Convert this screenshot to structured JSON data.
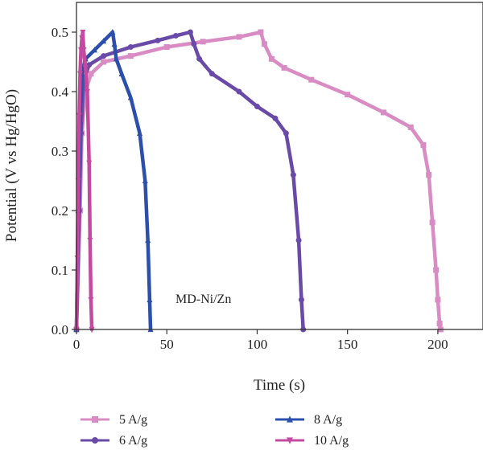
{
  "chart_data": {
    "type": "line",
    "xlabel": "Time (s)",
    "ylabel": "Potential (V vs Hg/HgO)",
    "annotation": "MD-Ni/Zn",
    "xlim": [
      0,
      225
    ],
    "ylim": [
      0,
      0.55
    ],
    "xticks": [
      0,
      50,
      100,
      150,
      200
    ],
    "yticks": [
      0.0,
      0.1,
      0.2,
      0.3,
      0.4,
      0.5
    ],
    "xtick_labels": [
      "0",
      "50",
      "100",
      "150",
      "200"
    ],
    "ytick_labels": [
      "0.0",
      "0.1",
      "0.2",
      "0.3",
      "0.4",
      "0.5"
    ],
    "grid": false,
    "legend_position": "bottom",
    "series": [
      {
        "name": "5 A/g",
        "color": "#d98cc4",
        "marker": "square",
        "x": [
          0,
          2,
          3,
          5,
          8,
          15,
          30,
          50,
          70,
          90,
          102,
          104,
          108,
          115,
          130,
          150,
          170,
          185,
          192,
          195,
          197,
          199,
          200,
          201,
          201.5
        ],
        "y": [
          0.0,
          0.2,
          0.33,
          0.4,
          0.43,
          0.45,
          0.46,
          0.475,
          0.484,
          0.492,
          0.5,
          0.48,
          0.455,
          0.44,
          0.42,
          0.395,
          0.365,
          0.34,
          0.31,
          0.26,
          0.18,
          0.1,
          0.05,
          0.01,
          0.0
        ]
      },
      {
        "name": "6 A/g",
        "color": "#6a4aa8",
        "marker": "circle",
        "x": [
          0,
          1.5,
          2.5,
          4,
          7,
          15,
          30,
          45,
          55,
          63,
          65,
          68,
          75,
          90,
          100,
          110,
          116,
          120,
          123,
          124.5,
          125.5
        ],
        "y": [
          0.0,
          0.2,
          0.33,
          0.42,
          0.445,
          0.46,
          0.475,
          0.486,
          0.494,
          0.5,
          0.48,
          0.455,
          0.43,
          0.4,
          0.375,
          0.355,
          0.33,
          0.26,
          0.15,
          0.05,
          0.0
        ]
      },
      {
        "name": "8 A/g",
        "color": "#2b4faa",
        "marker": "triangle-up",
        "x": [
          0,
          1,
          2,
          3,
          5,
          10,
          15,
          20,
          21,
          22,
          25,
          30,
          35,
          38,
          39.5,
          40.5,
          41
        ],
        "y": [
          0.0,
          0.2,
          0.35,
          0.43,
          0.455,
          0.47,
          0.485,
          0.5,
          0.48,
          0.455,
          0.43,
          0.39,
          0.33,
          0.25,
          0.15,
          0.05,
          0.0
        ]
      },
      {
        "name": "10 A/g",
        "color": "#c44aa0",
        "marker": "triangle-down",
        "x": [
          0,
          0.5,
          1,
          1.5,
          2,
          2.5,
          3,
          3.5,
          4,
          5,
          6,
          7,
          7.5,
          8,
          8.5
        ],
        "y": [
          0.0,
          0.12,
          0.25,
          0.36,
          0.43,
          0.47,
          0.49,
          0.5,
          0.47,
          0.44,
          0.4,
          0.28,
          0.15,
          0.05,
          0.0
        ]
      }
    ]
  }
}
